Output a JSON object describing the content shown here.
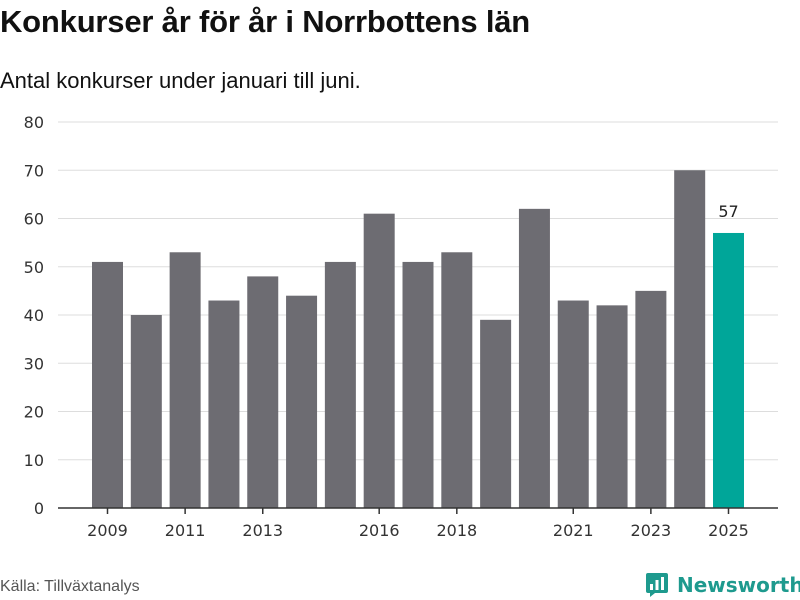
{
  "header": {
    "title": "Konkurser år för år i Norrbottens län",
    "subtitle": "Antal konkurser under januari till juni."
  },
  "footer": {
    "source": "Källa: Tillväxtanalys",
    "brand": "Newsworthy"
  },
  "colors": {
    "bar": "#6d6c72",
    "highlight": "#00a699",
    "grid": "#dddddd",
    "axis": "#333333",
    "brand": "#1e9a8e"
  },
  "chart_data": {
    "type": "bar",
    "title": "Konkurser år för år i Norrbottens län",
    "subtitle": "Antal konkurser under januari till juni.",
    "xlabel": "",
    "ylabel": "",
    "categories": [
      "2009",
      "2010",
      "2011",
      "2012",
      "2013",
      "2014",
      "2015",
      "2016",
      "2017",
      "2018",
      "2019",
      "2020",
      "2021",
      "2022",
      "2023",
      "2024",
      "2025"
    ],
    "values": [
      51,
      40,
      53,
      43,
      48,
      44,
      51,
      61,
      51,
      53,
      39,
      62,
      43,
      42,
      45,
      70,
      57
    ],
    "x_tick_labels": [
      "2009",
      "2011",
      "2013",
      "2016",
      "2018",
      "2021",
      "2023",
      "2025"
    ],
    "y_ticks": [
      0,
      10,
      20,
      30,
      40,
      50,
      60,
      70,
      80
    ],
    "ylim": [
      0,
      80
    ],
    "highlight_category": "2025",
    "data_labels": [
      {
        "category": "2025",
        "text": "57"
      }
    ],
    "grid": true,
    "legend": "none"
  }
}
